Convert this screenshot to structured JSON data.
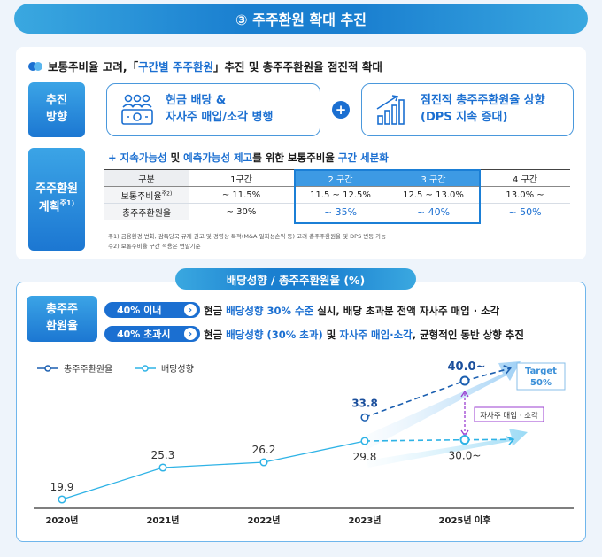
{
  "page_title": "③ 주주환원 확대 추진",
  "section1": {
    "headline_pre": "보통주비율 고려,「",
    "headline_hl": "구간별 주주환원",
    "headline_post": "」추진 및 총주주환원율 점진적 확대",
    "direction_label_1": "추진",
    "direction_label_2": "방향",
    "box1_line1": "현금 배당 &",
    "box1_line2": "자사주 매입/소각 병행",
    "plus": "+",
    "box2_line1": "점진적 총주주환원율 상향",
    "box2_line2": "(DPS 지속 증대)",
    "plan_label_1": "주주환원",
    "plan_label_2": "계획",
    "plan_label_sup": "주1)",
    "sub_plus": "+",
    "sub_a": "지속가능성",
    "sub_b": " 및 ",
    "sub_c": "예측가능성 제고",
    "sub_d": "를 위한 보통주비율 ",
    "sub_e": "구간 세분화",
    "table": {
      "header": [
        "구분",
        "1구간",
        "2 구간",
        "3 구간",
        "4 구간"
      ],
      "row1_label": "보통주비율",
      "row1_sup": "주2)",
      "row1": [
        "~ 11.5%",
        "11.5 ~ 12.5%",
        "12.5 ~ 13.0%",
        "13.0% ~"
      ],
      "row2_label": "총주주환원율",
      "row2": [
        "~ 30%",
        "~ 35%",
        "~ 40%",
        "~ 50%"
      ]
    },
    "note1": "주1) 금융환경 변화, 감독당국 규제·권고 및 경영상 목적(M&A 일회성손익 등) 고려 총주주환원율 및 DPS 변동 가능",
    "note2": "주2) 보통주비율 구간 적용은 연말기준"
  },
  "section2": {
    "tab_title": "배당성향 / 총주주환원율 (%)",
    "side_label_1": "총주주",
    "side_label_2": "환원율",
    "badge1": "40% 이내",
    "badge2": "40% 초과시",
    "chevron": "›",
    "policy1_a": "현금 ",
    "policy1_b": "배당성향 30% 수준",
    "policy1_c": " 실시, ",
    "policy1_d": "배당 초과분 전액 자사주 매입 · 소각",
    "policy2_a": "현금 ",
    "policy2_b": "배당성향 (30% 초과)",
    "policy2_c": " 및 ",
    "policy2_d": "자사주 매입·소각",
    "policy2_e": ", 균형적인 동반 상향 추진",
    "target_line1": "Target",
    "target_line2": "50%",
    "buyback_label": "자사주 매입 · 소각"
  },
  "chart_data": {
    "type": "line",
    "categories": [
      "2020년",
      "2021년",
      "2022년",
      "2023년",
      "2025년 이후"
    ],
    "series": [
      {
        "name": "총주주환원율",
        "values": [
          null,
          null,
          null,
          33.8,
          40.0
        ],
        "labels": [
          null,
          null,
          null,
          "33.8",
          "40.0~"
        ],
        "color": "#1b5fb0"
      },
      {
        "name": "배당성향",
        "values": [
          19.9,
          25.3,
          26.2,
          29.8,
          30.0
        ],
        "labels": [
          "19.9",
          "25.3",
          "26.2",
          "29.8",
          "30.0~"
        ],
        "color": "#2fb3e6"
      }
    ]
  }
}
